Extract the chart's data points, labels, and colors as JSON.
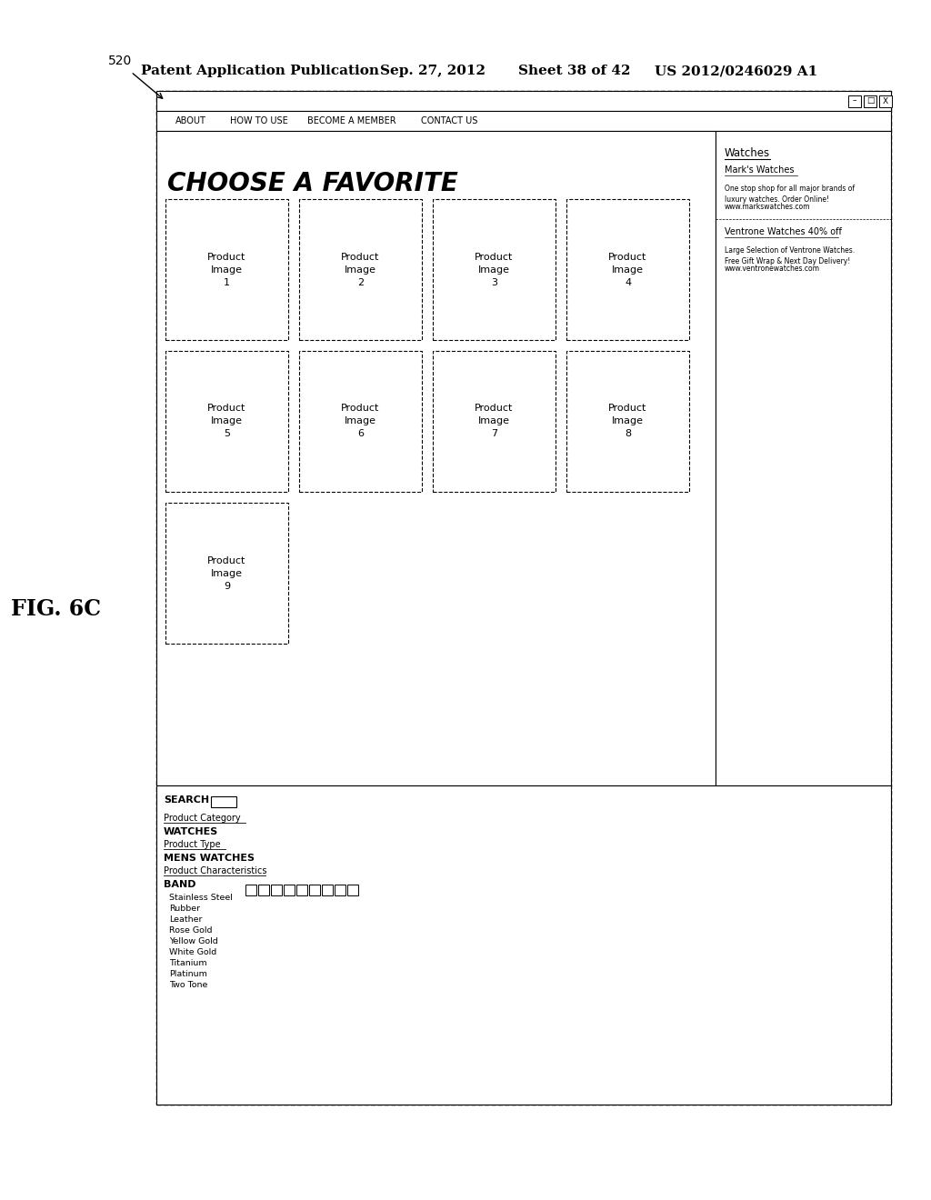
{
  "fig_label": "FIG. 6C",
  "patent_header": "Patent Application Publication",
  "patent_date": "Sep. 27, 2012",
  "patent_sheet": "Sheet 38 of 42",
  "patent_number": "US 2012/0246029 A1",
  "annotation_label": "520",
  "nav_tabs": [
    "ABOUT",
    "HOW TO USE",
    "BECOME A MEMBER",
    "CONTACT US"
  ],
  "main_title": "CHOOSE A FAVORITE",
  "sidebar_ad_title": "Watches",
  "sidebar_ad1_name": "Mark's Watches",
  "sidebar_ad1_text": "One stop shop for all major brands of\nluxury watches. Order Online!",
  "sidebar_ad1_url": "www.markswatches.com",
  "sidebar_ad2_name": "Ventrone Watches 40% off",
  "sidebar_ad2_text": "Large Selection of Ventrone Watches.\nFree Gift Wrap & Next Day Delivery!",
  "sidebar_ad2_url": "www.ventronewatches.com",
  "bottom_search_label": "SEARCH",
  "bottom_product_category": "Product Category",
  "bottom_watches": "WATCHES",
  "bottom_product_type": "Product Type",
  "bottom_mens_watches": "MENS WATCHES",
  "bottom_product_chars": "Product Characteristics",
  "bottom_band": "BAND",
  "bottom_band_items": [
    "Stainless Steel",
    "Rubber",
    "Leather",
    "Rose Gold",
    "Yellow Gold",
    "White Gold",
    "Titanium",
    "Platinum",
    "Two Tone"
  ],
  "num_checkboxes": 9,
  "prod_data": [
    [
      0,
      0,
      "Product\nImage\n1"
    ],
    [
      1,
      0,
      "Product\nImage\n2"
    ],
    [
      2,
      0,
      "Product\nImage\n3"
    ],
    [
      3,
      0,
      "Product\nImage\n4"
    ],
    [
      0,
      1,
      "Product\nImage\n5"
    ],
    [
      1,
      1,
      "Product\nImage\n6"
    ],
    [
      2,
      1,
      "Product\nImage\n7"
    ],
    [
      3,
      1,
      "Product\nImage\n8"
    ],
    [
      0,
      2,
      "Product\nImage\n9"
    ]
  ]
}
